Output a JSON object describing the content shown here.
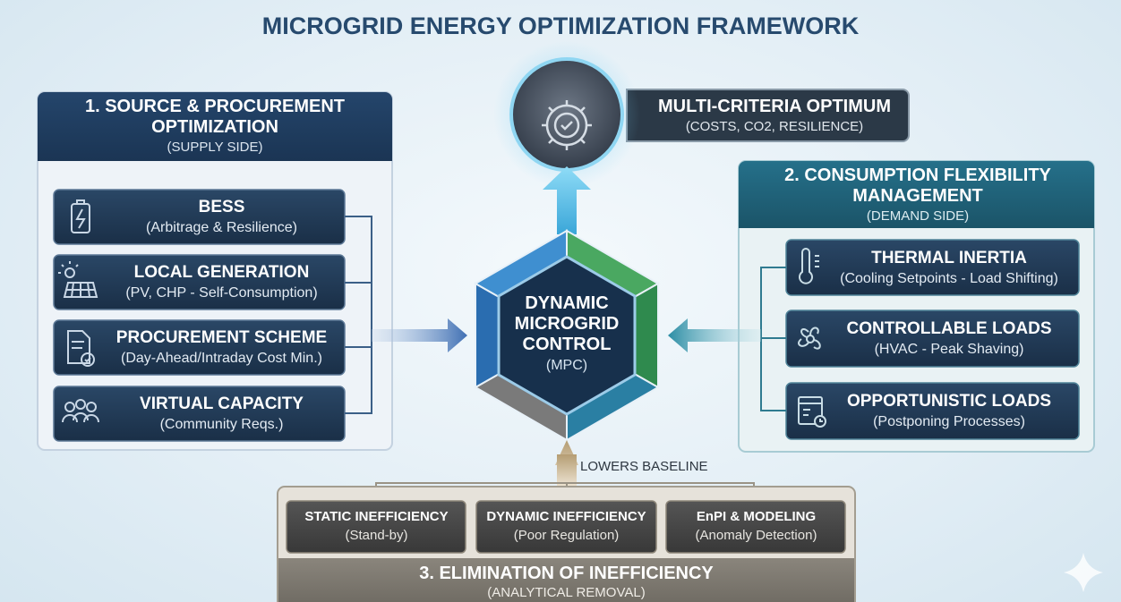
{
  "title": "MICROGRID ENERGY OPTIMIZATION FRAMEWORK",
  "center": {
    "title": "DYNAMIC MICROGRID CONTROL",
    "subtitle": "(MPC)"
  },
  "optimum": {
    "title": "MULTI-CRITERIA OPTIMUM",
    "subtitle": "(COSTS, CO2, RESILIENCE)"
  },
  "supply": {
    "title": "1. SOURCE & PROCUREMENT OPTIMIZATION",
    "subtitle": "(SUPPLY SIDE)",
    "items": [
      {
        "title": "BESS",
        "subtitle": "(Arbitrage & Resilience)"
      },
      {
        "title": "LOCAL GENERATION",
        "subtitle": "(PV, CHP - Self-Consumption)"
      },
      {
        "title": "PROCUREMENT SCHEME",
        "subtitle": "(Day-Ahead/Intraday Cost Min.)"
      },
      {
        "title": "VIRTUAL CAPACITY",
        "subtitle": "(Community Reqs.)"
      }
    ]
  },
  "demand": {
    "title": "2. CONSUMPTION FLEXIBILITY MANAGEMENT",
    "subtitle": "(DEMAND SIDE)",
    "items": [
      {
        "title": "THERMAL INERTIA",
        "subtitle": "(Cooling Setpoints - Load Shifting)"
      },
      {
        "title": "CONTROLLABLE LOADS",
        "subtitle": "(HVAC - Peak Shaving)"
      },
      {
        "title": "OPPORTUNISTIC LOADS",
        "subtitle": "(Postponing Processes)"
      }
    ]
  },
  "inefficiency": {
    "title": "3. ELIMINATION OF INEFFICIENCY",
    "subtitle": "(ANALYTICAL REMOVAL)",
    "link_label": "LOWERS BASELINE",
    "items": [
      {
        "title": "STATIC INEFFICIENCY",
        "subtitle": "(Stand-by)"
      },
      {
        "title": "DYNAMIC INEFFICIENCY",
        "subtitle": "(Poor Regulation)"
      },
      {
        "title": "EnPI & MODELING",
        "subtitle": "(Anomaly Detection)"
      }
    ]
  }
}
